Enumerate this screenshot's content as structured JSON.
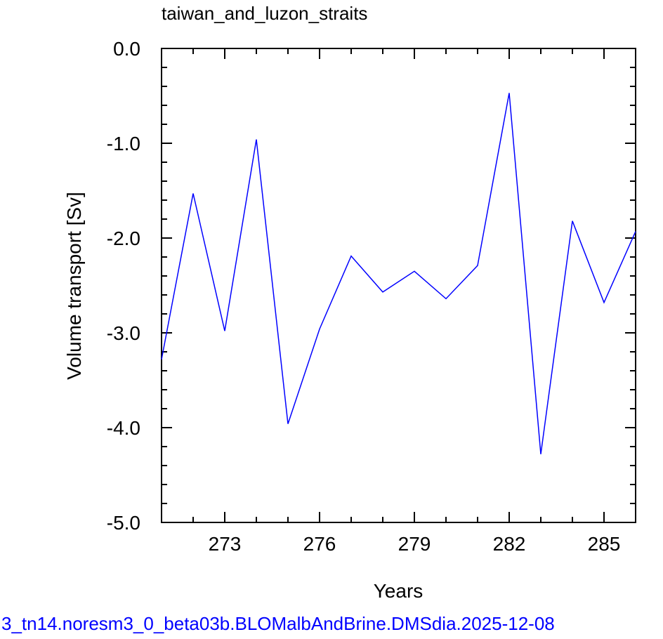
{
  "chart_data": {
    "type": "line",
    "title": "taiwan_and_luzon_straits",
    "xlabel": "Years",
    "ylabel": "Volume transport [Sv]",
    "xlim": [
      271,
      286
    ],
    "ylim": [
      -5.0,
      0.0
    ],
    "x_ticks": [
      273,
      276,
      279,
      282,
      285
    ],
    "x_tick_labels": [
      "273",
      "276",
      "279",
      "282",
      "285"
    ],
    "y_ticks": [
      0.0,
      -1.0,
      -2.0,
      -3.0,
      -4.0,
      -5.0
    ],
    "y_tick_labels": [
      "0.0",
      "-1.0",
      "-2.0",
      "-3.0",
      "-4.0",
      "-5.0"
    ],
    "line_color": "#0000ff",
    "series": [
      {
        "x": [
          271,
          272,
          273,
          274,
          275,
          276,
          277,
          278,
          279,
          280,
          281,
          282,
          283,
          284,
          285,
          286
        ],
        "values": [
          -3.28,
          -1.53,
          -2.98,
          -0.96,
          -3.96,
          -2.96,
          -2.19,
          -2.57,
          -2.35,
          -2.64,
          -2.29,
          -0.47,
          -4.28,
          -1.82,
          -2.68,
          -1.93
        ]
      }
    ],
    "grid": false
  },
  "footer": {
    "text": "3_tn14.noresm3_0_beta03b.BLOMalbAndBrine.DMSdia.2025-12-08",
    "color": "#0000ff"
  }
}
